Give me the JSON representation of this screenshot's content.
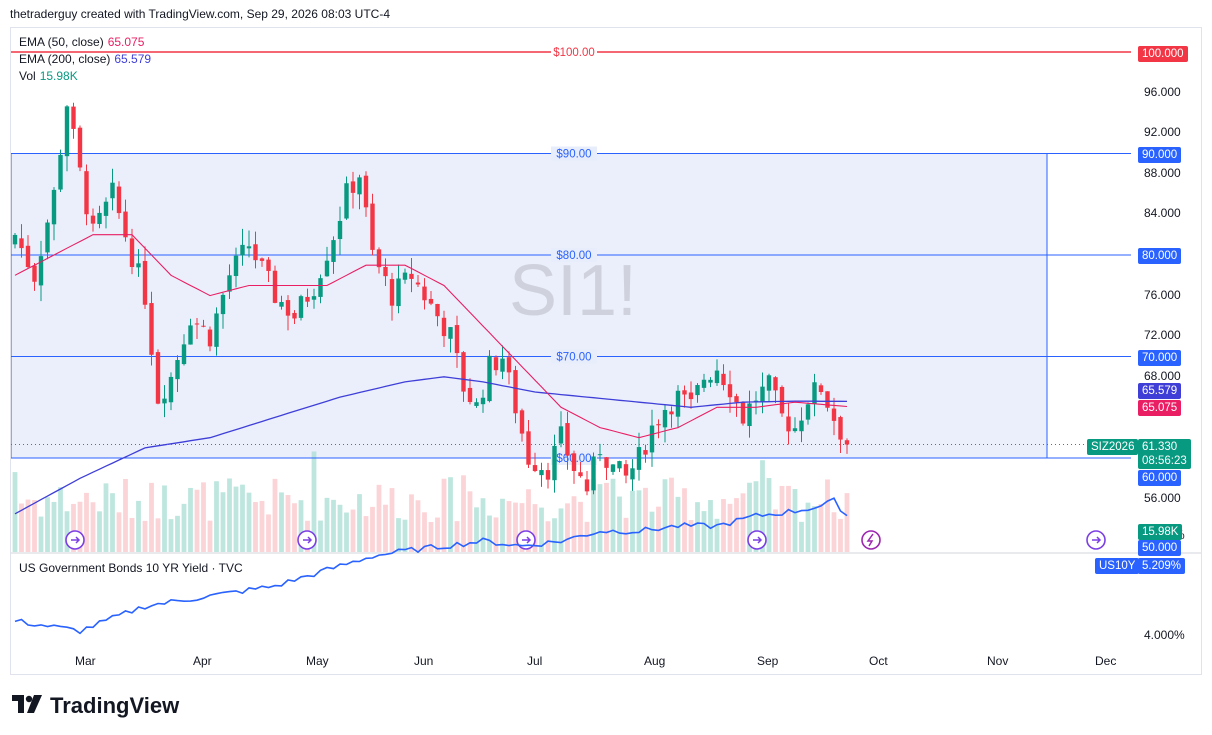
{
  "header": {
    "text": "thetraderguy created with TradingView.com, Sep 29, 2026 08:03 UTC-4"
  },
  "legend": {
    "ema50_label": "EMA (50, close)",
    "ema50_value": "65.075",
    "ema200_label": "EMA (200, close)",
    "ema200_value": "65.579",
    "vol_label": "Vol",
    "vol_value": "15.98K"
  },
  "watermark": "SI1!",
  "footer": {
    "logo_text": "TradingView"
  },
  "colors": {
    "up": "#089981",
    "down": "#f23645",
    "ema50": "#e91e63",
    "ema200": "#3f3fd8",
    "box_fill": "#e8edfb",
    "box_line": "#2962ff",
    "red_line": "#f23645",
    "bond_line": "#2962ff"
  },
  "price_axis": {
    "ticks": [
      "96.000",
      "92.000",
      "88.000",
      "84.000",
      "76.000",
      "72.000",
      "68.000",
      "56.000",
      "52.000"
    ],
    "tags": {
      "red_level": "100.000",
      "l90": "90.000",
      "l80": "80.000",
      "l70": "70.000",
      "ema200": "65.579",
      "ema50": "65.075",
      "symbol": "SIZ2026",
      "last": "61.330",
      "countdown": "08:56:23",
      "l60": "60.000",
      "volume": "15.98K",
      "l50": "50.000"
    }
  },
  "line_labels": {
    "l100": "$100.00",
    "l90": "$90.00",
    "l80": "$80.00",
    "l70": "$70.00",
    "l60": "$60.00"
  },
  "bond_pane": {
    "title": "US Government Bonds 10 YR Yield · TVC",
    "symbol": "US10Y",
    "value": "5.209%",
    "ticks": [
      "5.000%",
      "4.000%"
    ]
  },
  "time_axis": {
    "labels": [
      "Mar",
      "Apr",
      "May",
      "Jun",
      "Jul",
      "Aug",
      "Sep",
      "Oct",
      "Nov",
      "Dec"
    ]
  },
  "chart_data": {
    "type": "candlestick",
    "title": "SI1!",
    "price_range": [
      50,
      100
    ],
    "horizontal_levels": [
      100,
      90,
      80,
      70,
      60
    ],
    "box": {
      "top": 90,
      "bottom": 60
    },
    "last_price": 61.33,
    "series": [
      {
        "name": "EMA (50, close)",
        "last": 65.075
      },
      {
        "name": "EMA (200, close)",
        "last": 65.579
      }
    ],
    "close_anchors": [
      [
        0,
        82
      ],
      [
        3,
        78
      ],
      [
        6,
        86
      ],
      [
        8,
        95
      ],
      [
        10,
        88
      ],
      [
        12,
        82
      ],
      [
        15,
        86
      ],
      [
        18,
        80
      ],
      [
        20,
        76
      ],
      [
        22,
        66
      ],
      [
        24,
        68
      ],
      [
        27,
        74
      ],
      [
        30,
        72
      ],
      [
        33,
        78
      ],
      [
        36,
        81
      ],
      [
        40,
        76
      ],
      [
        43,
        74
      ],
      [
        46,
        77
      ],
      [
        49,
        82
      ],
      [
        51,
        86
      ],
      [
        53,
        88
      ],
      [
        55,
        80
      ],
      [
        58,
        76
      ],
      [
        61,
        78
      ],
      [
        64,
        75
      ],
      [
        67,
        72
      ],
      [
        69,
        67
      ],
      [
        71,
        65
      ],
      [
        73,
        69
      ],
      [
        75,
        70
      ],
      [
        77,
        65
      ],
      [
        79,
        60
      ],
      [
        82,
        59
      ],
      [
        84,
        62
      ],
      [
        86,
        59
      ],
      [
        88,
        57
      ],
      [
        90,
        61
      ],
      [
        92,
        59
      ],
      [
        94,
        58
      ],
      [
        96,
        60
      ],
      [
        98,
        63
      ],
      [
        100,
        65
      ],
      [
        102,
        66
      ],
      [
        104,
        65
      ],
      [
        106,
        68
      ],
      [
        108,
        69
      ],
      [
        110,
        67
      ],
      [
        112,
        64
      ],
      [
        114,
        66
      ],
      [
        116,
        67
      ],
      [
        118,
        64
      ],
      [
        120,
        63
      ],
      [
        122,
        66
      ],
      [
        124,
        67
      ],
      [
        126,
        64
      ],
      [
        128,
        61.33
      ]
    ],
    "ema50_anchors": [
      [
        0,
        78
      ],
      [
        6,
        80
      ],
      [
        12,
        82
      ],
      [
        18,
        82
      ],
      [
        24,
        78
      ],
      [
        30,
        76
      ],
      [
        36,
        77
      ],
      [
        42,
        77
      ],
      [
        48,
        77
      ],
      [
        54,
        79
      ],
      [
        60,
        79
      ],
      [
        66,
        77
      ],
      [
        72,
        73
      ],
      [
        78,
        69
      ],
      [
        84,
        65
      ],
      [
        90,
        63
      ],
      [
        96,
        62
      ],
      [
        102,
        63
      ],
      [
        108,
        65
      ],
      [
        114,
        65
      ],
      [
        120,
        65.5
      ],
      [
        128,
        65.075
      ]
    ],
    "ema200_anchors": [
      [
        0,
        54.5
      ],
      [
        10,
        58
      ],
      [
        20,
        61
      ],
      [
        30,
        62
      ],
      [
        40,
        64
      ],
      [
        50,
        66
      ],
      [
        60,
        67.5
      ],
      [
        66,
        68
      ],
      [
        72,
        67.5
      ],
      [
        80,
        66.5
      ],
      [
        88,
        66
      ],
      [
        96,
        65.5
      ],
      [
        104,
        65
      ],
      [
        112,
        65.5
      ],
      [
        120,
        65.6
      ],
      [
        128,
        65.579
      ]
    ],
    "bond_yield_anchors": [
      [
        0,
        4.15
      ],
      [
        10,
        4.05
      ],
      [
        20,
        4.3
      ],
      [
        30,
        4.4
      ],
      [
        40,
        4.5
      ],
      [
        50,
        4.7
      ],
      [
        55,
        4.8
      ],
      [
        60,
        4.85
      ],
      [
        66,
        4.9
      ],
      [
        72,
        4.95
      ],
      [
        78,
        4.9
      ],
      [
        84,
        4.95
      ],
      [
        90,
        5.05
      ],
      [
        96,
        5.05
      ],
      [
        102,
        5.1
      ],
      [
        108,
        5.1
      ],
      [
        114,
        5.2
      ],
      [
        120,
        5.25
      ],
      [
        124,
        5.3
      ],
      [
        126,
        5.35
      ],
      [
        128,
        5.209
      ]
    ],
    "time_labels": [
      "Mar",
      "Apr",
      "May",
      "Jun",
      "Jul",
      "Aug",
      "Sep",
      "Oct",
      "Nov",
      "Dec"
    ]
  }
}
